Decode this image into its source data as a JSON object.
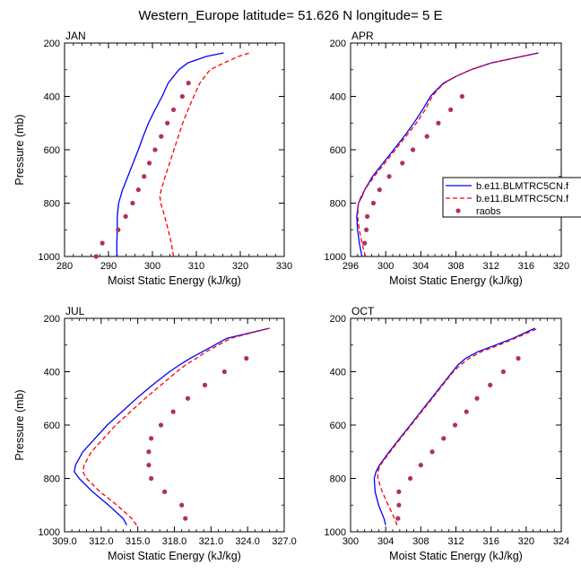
{
  "figure": {
    "title": "Western_Europe  latitude= 51.626 N longitude= 5 E"
  },
  "legend": {
    "placement": "right of APR panel",
    "entries": [
      {
        "label": "b.e11.BLMTRC5CN.f",
        "color": "#0000ff",
        "style": "solid"
      },
      {
        "label": "b.e11.BLMTRC5CN.f",
        "color": "#ff0000",
        "style": "dashed"
      },
      {
        "label": "raobs",
        "color": "#b03060",
        "style": "dot"
      }
    ]
  },
  "chart_data": [
    {
      "type": "line",
      "panel": "JAN",
      "xlabel": "Moist Static Energy (kJ/kg)",
      "ylabel": "Pressure (mb)",
      "xlim": [
        280,
        330
      ],
      "ylim": [
        1000,
        200
      ],
      "xticks": [
        280,
        290,
        300,
        310,
        320,
        330
      ],
      "xtick_labels": [
        "280",
        "290",
        "300",
        "310",
        "320",
        "330"
      ],
      "yticks": [
        200,
        400,
        600,
        800,
        1000
      ],
      "ytick_labels": [
        "200",
        "400",
        "600",
        "800",
        "1000"
      ],
      "series": [
        {
          "name": "b.e11.BLMTRC5CN.f (model 1)",
          "color": "#0000ff",
          "dash": "solid",
          "pressure": [
            1000,
            950,
            900,
            850,
            800,
            750,
            700,
            650,
            600,
            550,
            500,
            450,
            400,
            350,
            300,
            275,
            250,
            237
          ],
          "values": [
            291.9,
            291.9,
            292.0,
            292.0,
            292.3,
            293.2,
            294.4,
            295.6,
            296.8,
            297.9,
            299.1,
            300.6,
            302.2,
            303.6,
            306.0,
            308.0,
            312.3,
            316.2
          ]
        },
        {
          "name": "b.e11.BLMTRC5CN.f (model 2)",
          "color": "#ff0000",
          "dash": "dashed",
          "pressure": [
            1000,
            950,
            900,
            850,
            800,
            775,
            750,
            700,
            650,
            600,
            550,
            500,
            450,
            400,
            350,
            300,
            275,
            250,
            237
          ],
          "values": [
            304.8,
            304.3,
            303.6,
            302.8,
            301.9,
            301.7,
            302.0,
            302.9,
            303.9,
            304.9,
            305.9,
            306.9,
            308.1,
            309.4,
            310.8,
            313.1,
            316.2,
            319.6,
            322.1
          ]
        },
        {
          "name": "raobs",
          "color": "#b03060",
          "dash": "dots",
          "pressure": [
            1000,
            950,
            900,
            850,
            800,
            750,
            700,
            650,
            600,
            550,
            500,
            450,
            400,
            350
          ],
          "values": [
            287.2,
            288.6,
            292.2,
            293.9,
            295.5,
            296.8,
            298.1,
            299.3,
            300.6,
            302.0,
            303.4,
            304.8,
            306.8,
            308.2
          ]
        }
      ]
    },
    {
      "type": "line",
      "panel": "APR",
      "xlabel": "Moist Static Energy (kJ/kg)",
      "ylabel": "",
      "xlim": [
        296,
        320
      ],
      "ylim": [
        1000,
        200
      ],
      "xticks": [
        296,
        300,
        304,
        308,
        312,
        316,
        320
      ],
      "xtick_labels": [
        "296",
        "300",
        "304",
        "308",
        "312",
        "316",
        "320"
      ],
      "yticks": [
        200,
        400,
        600,
        800,
        1000
      ],
      "ytick_labels": [
        "200",
        "400",
        "600",
        "800",
        "1000"
      ],
      "series": [
        {
          "name": "b.e11.BLMTRC5CN.f (model 1)",
          "color": "#0000ff",
          "dash": "solid",
          "pressure": [
            1000,
            950,
            900,
            850,
            800,
            775,
            750,
            700,
            650,
            600,
            550,
            500,
            450,
            400,
            375,
            350,
            325,
            300,
            275,
            237
          ],
          "values": [
            297.3,
            297.0,
            296.8,
            296.7,
            296.9,
            297.3,
            297.6,
            298.5,
            299.7,
            300.9,
            302.1,
            303.2,
            304.2,
            305.1,
            305.8,
            306.6,
            308.0,
            309.7,
            312.0,
            317.4
          ]
        },
        {
          "name": "b.e11.BLMTRC5CN.f (model 2)",
          "color": "#ff0000",
          "dash": "dashed",
          "pressure": [
            1000,
            950,
            900,
            850,
            800,
            775,
            750,
            700,
            650,
            600,
            550,
            500,
            450,
            400,
            375,
            350,
            325,
            300,
            275,
            237
          ],
          "values": [
            297.7,
            297.3,
            297.0,
            296.8,
            296.9,
            297.2,
            297.6,
            298.7,
            299.9,
            301.1,
            302.3,
            303.5,
            304.5,
            305.3,
            305.9,
            306.7,
            308.0,
            309.7,
            312.0,
            317.4
          ]
        },
        {
          "name": "raobs",
          "color": "#b03060",
          "dash": "dots",
          "pressure": [
            950,
            900,
            850,
            800,
            750,
            700,
            650,
            600,
            550,
            500,
            450,
            400
          ],
          "values": [
            297.6,
            297.8,
            297.9,
            298.6,
            299.3,
            300.4,
            301.9,
            303.1,
            304.7,
            306.0,
            307.4,
            308.7
          ]
        }
      ]
    },
    {
      "type": "line",
      "panel": "JUL",
      "xlabel": "Moist Static Energy (kJ/kg)",
      "ylabel": "Pressure (mb)",
      "xlim": [
        309,
        327
      ],
      "ylim": [
        1000,
        200
      ],
      "xticks": [
        309,
        312,
        315,
        318,
        321,
        324,
        327
      ],
      "xtick_labels": [
        "309.0",
        "312.0",
        "315.0",
        "318.0",
        "321.0",
        "324.0",
        "327.0"
      ],
      "yticks": [
        200,
        400,
        600,
        800,
        1000
      ],
      "ytick_labels": [
        "200",
        "400",
        "600",
        "800",
        "1000"
      ],
      "series": [
        {
          "name": "b.e11.BLMTRC5CN.f (model 1)",
          "color": "#0000ff",
          "dash": "solid",
          "pressure": [
            975,
            950,
            900,
            850,
            800,
            775,
            750,
            700,
            650,
            600,
            550,
            500,
            450,
            400,
            375,
            350,
            325,
            300,
            275,
            237
          ],
          "values": [
            314.1,
            313.8,
            312.6,
            311.3,
            310.2,
            309.8,
            309.9,
            310.5,
            311.5,
            312.5,
            313.7,
            314.9,
            316.2,
            317.6,
            318.4,
            319.3,
            320.3,
            321.3,
            322.3,
            325.8
          ]
        },
        {
          "name": "b.e11.BLMTRC5CN.f (model 2)",
          "color": "#ff0000",
          "dash": "dashed",
          "pressure": [
            975,
            950,
            900,
            850,
            800,
            775,
            750,
            700,
            650,
            600,
            550,
            500,
            450,
            400,
            375,
            350,
            325,
            300,
            275,
            237
          ],
          "values": [
            314.9,
            314.5,
            313.3,
            311.9,
            310.8,
            310.5,
            310.6,
            311.2,
            312.2,
            313.2,
            314.4,
            315.6,
            316.9,
            318.2,
            318.9,
            319.8,
            320.6,
            321.6,
            322.6,
            325.8
          ]
        },
        {
          "name": "raobs",
          "color": "#b03060",
          "dash": "dots",
          "pressure": [
            950,
            900,
            850,
            800,
            750,
            700,
            650,
            600,
            550,
            500,
            450,
            400,
            350
          ],
          "values": [
            318.9,
            318.6,
            317.2,
            316.1,
            315.9,
            315.9,
            316.1,
            316.9,
            317.9,
            319.1,
            320.5,
            322.1,
            323.9
          ]
        }
      ]
    },
    {
      "type": "line",
      "panel": "OCT",
      "xlabel": "Moist Static Energy (kJ/kg)",
      "ylabel": "",
      "xlim": [
        300,
        324
      ],
      "ylim": [
        1000,
        200
      ],
      "xticks": [
        300,
        304,
        308,
        312,
        316,
        320,
        324
      ],
      "xtick_labels": [
        "300",
        "304",
        "308",
        "312",
        "316",
        "320",
        "324"
      ],
      "yticks": [
        200,
        400,
        600,
        800,
        1000
      ],
      "ytick_labels": [
        "200",
        "400",
        "600",
        "800",
        "1000"
      ],
      "series": [
        {
          "name": "b.e11.BLMTRC5CN.f (model 1)",
          "color": "#0000ff",
          "dash": "solid",
          "pressure": [
            975,
            950,
            900,
            850,
            800,
            775,
            750,
            700,
            650,
            600,
            550,
            500,
            450,
            400,
            375,
            350,
            325,
            300,
            275,
            237
          ],
          "values": [
            304.0,
            303.8,
            303.2,
            302.8,
            302.7,
            302.9,
            303.3,
            304.4,
            305.6,
            306.8,
            308.0,
            309.2,
            310.4,
            311.6,
            312.2,
            313.1,
            314.5,
            316.5,
            318.5,
            321.0
          ]
        },
        {
          "name": "b.e11.BLMTRC5CN.f (model 2)",
          "color": "#ff0000",
          "dash": "dashed",
          "pressure": [
            975,
            950,
            900,
            850,
            800,
            775,
            750,
            700,
            650,
            600,
            550,
            500,
            450,
            400,
            375,
            350,
            325,
            300,
            275,
            237
          ],
          "values": [
            305.3,
            305.0,
            304.3,
            303.6,
            303.1,
            303.1,
            303.4,
            304.5,
            305.7,
            306.9,
            308.1,
            309.3,
            310.5,
            311.7,
            312.5,
            313.5,
            314.9,
            316.9,
            318.7,
            321.4
          ]
        },
        {
          "name": "raobs",
          "color": "#b03060",
          "dash": "dots",
          "pressure": [
            950,
            900,
            850,
            800,
            750,
            700,
            650,
            600,
            550,
            500,
            450,
            400,
            350
          ],
          "values": [
            305.4,
            305.5,
            305.5,
            306.8,
            308.0,
            309.3,
            310.6,
            311.9,
            313.2,
            314.4,
            315.9,
            317.4,
            319.1
          ]
        }
      ]
    }
  ]
}
